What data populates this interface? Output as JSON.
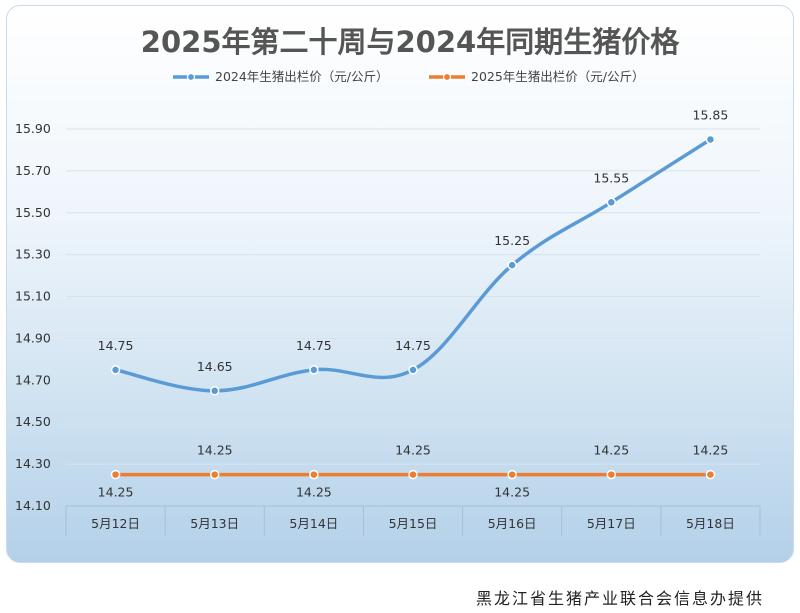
{
  "chart_data": {
    "type": "line",
    "title": "2025年第二十周与2024年同期生猪价格",
    "categories": [
      "5月12日",
      "5月13日",
      "5月14日",
      "5月15日",
      "5月16日",
      "5月17日",
      "5月18日"
    ],
    "ylim": [
      14.1,
      15.9
    ],
    "yticks": [
      "14.10",
      "14.30",
      "14.50",
      "14.70",
      "14.90",
      "15.10",
      "15.30",
      "15.50",
      "15.70",
      "15.90"
    ],
    "grid": true,
    "legend_position": "top",
    "series": [
      {
        "name": "2024年生猪出栏价（元/公斤）",
        "values": [
          14.75,
          14.65,
          14.75,
          14.75,
          15.25,
          15.55,
          15.85
        ],
        "labels": [
          "14.75",
          "14.65",
          "14.75",
          "14.75",
          "15.25",
          "15.55",
          "15.85"
        ],
        "color": "#5b9bd5"
      },
      {
        "name": "2025年生猪出栏价（元/公斤）",
        "values": [
          14.25,
          14.25,
          14.25,
          14.25,
          14.25,
          14.25,
          14.25
        ],
        "labels": [
          "14.25",
          "14.25",
          "14.25",
          "14.25",
          "14.25",
          "14.25",
          "14.25"
        ],
        "color": "#ed7d31"
      }
    ]
  },
  "footer": "黑龙江省生猪产业联合会信息办提供"
}
